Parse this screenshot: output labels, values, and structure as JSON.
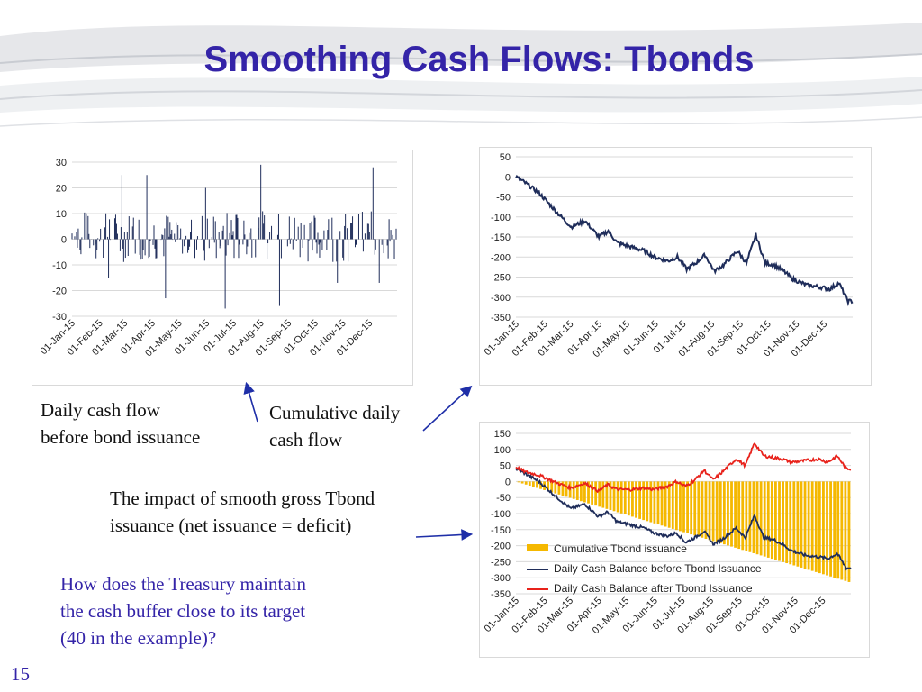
{
  "slide": {
    "title": "Smoothing Cash Flows: Tbonds",
    "page_number": "15",
    "captions": {
      "daily_cash_flow_line1": "Daily cash flow",
      "daily_cash_flow_line2": "before bond issuance",
      "cumulative_line1": "Cumulative daily",
      "cumulative_line2": "cash flow",
      "impact_line1": "The impact of smooth gross Tbond",
      "impact_line2": "issuance (net issuance = deficit)",
      "question_line1": "How does the Treasury maintain",
      "question_line2": "the cash buffer close to its target",
      "question_line3": "(40 in the example)?"
    },
    "colors": {
      "title": "#3424a8",
      "navy_series": "#1f2d5a",
      "red_series": "#e8221b",
      "orange_bars": "#f5b800"
    }
  },
  "chart_data": [
    {
      "type": "bar",
      "ylim": [
        -30,
        30
      ],
      "yticks": [
        30,
        20,
        10,
        0,
        -10,
        -20,
        -30
      ],
      "x_tick_labels": [
        "01-Jan-15",
        "01-Feb-15",
        "01-Mar-15",
        "01-Apr-15",
        "01-May-15",
        "01-Jun-15",
        "01-Jul-15",
        "01-Aug-15",
        "01-Sep-15",
        "01-Oct-15",
        "01-Nov-15",
        "01-Dec-15"
      ],
      "series": [
        {
          "values_description_note": "",
          "spikes": [
            {
              "day": 18,
              "value": 9
            },
            {
              "day": 41,
              "value": -15
            },
            {
              "day": 56,
              "value": 25
            },
            {
              "day": 84,
              "value": 25
            },
            {
              "day": 105,
              "value": -23
            },
            {
              "day": 150,
              "value": 20
            },
            {
              "day": 172,
              "value": -27
            },
            {
              "day": 212,
              "value": 29
            },
            {
              "day": 233,
              "value": -26
            },
            {
              "day": 298,
              "value": -17
            },
            {
              "day": 338,
              "value": 28
            },
            {
              "day": 345,
              "value": -17
            }
          ]
        }
      ]
    },
    {
      "type": "line",
      "ylim": [
        -350,
        50
      ],
      "yticks": [
        50,
        0,
        -50,
        -100,
        -150,
        -200,
        -250,
        -300,
        -350
      ],
      "x_tick_labels": [
        "01-Jan-15",
        "01-Feb-15",
        "01-Mar-15",
        "01-Apr-15",
        "01-May-15",
        "01-Jun-15",
        "01-Jul-15",
        "01-Aug-15",
        "01-Sep-15",
        "01-Oct-15",
        "01-Nov-15",
        "01-Dec-15"
      ],
      "series": [
        {
          "x_days": [
            0,
            10,
            25,
            45,
            60,
            75,
            90,
            100,
            110,
            125,
            140,
            150,
            165,
            175,
            185,
            195,
            205,
            215,
            225,
            240,
            250,
            260,
            270,
            280,
            290,
            300,
            315,
            330,
            340,
            350,
            360
          ],
          "values": [
            0,
            -15,
            -40,
            -90,
            -125,
            -110,
            -150,
            -135,
            -165,
            -175,
            -185,
            -200,
            -210,
            -200,
            -230,
            -215,
            -195,
            -235,
            -220,
            -185,
            -215,
            -145,
            -215,
            -220,
            -235,
            -255,
            -270,
            -275,
            -280,
            -265,
            -310
          ]
        }
      ]
    },
    {
      "type": "line",
      "ylim": [
        -350,
        150
      ],
      "yticks": [
        150,
        100,
        50,
        0,
        -50,
        -100,
        -150,
        -200,
        -250,
        -300,
        -350
      ],
      "x_tick_labels": [
        "01-Jan-15",
        "01-Feb-15",
        "01-Mar-15",
        "01-Apr-15",
        "01-May-15",
        "01-Jun-15",
        "01-Jul-15",
        "01-Aug-15",
        "01-Sep-15",
        "01-Oct-15",
        "01-Nov-15",
        "01-Dec-15"
      ],
      "legend": [
        "Cumulative Tbond issuance",
        "Daily Cash Balance before Tbond Issuance",
        "Daily Cash Balance after Tbond Issuance"
      ],
      "bars_series": {
        "name": "Cumulative Tbond issuance",
        "x_days": [
          0,
          365
        ],
        "values": [
          0,
          -315
        ]
      },
      "series": [
        {
          "name": "Daily Cash Balance before Tbond Issuance",
          "x_days": [
            0,
            10,
            25,
            45,
            60,
            75,
            90,
            100,
            110,
            125,
            140,
            150,
            165,
            175,
            185,
            195,
            205,
            215,
            225,
            240,
            250,
            260,
            270,
            280,
            290,
            300,
            315,
            330,
            340,
            350,
            360
          ],
          "values": [
            40,
            25,
            0,
            -50,
            -85,
            -70,
            -110,
            -95,
            -125,
            -135,
            -145,
            -160,
            -170,
            -160,
            -190,
            -175,
            -155,
            -195,
            -180,
            -145,
            -175,
            -105,
            -175,
            -180,
            -195,
            -215,
            -230,
            -235,
            -240,
            -225,
            -270
          ]
        },
        {
          "name": "Daily Cash Balance after Tbond Issuance",
          "x_days": [
            0,
            10,
            25,
            45,
            60,
            75,
            90,
            100,
            110,
            125,
            140,
            150,
            165,
            175,
            185,
            195,
            205,
            215,
            225,
            240,
            250,
            260,
            270,
            280,
            290,
            300,
            315,
            330,
            340,
            350,
            360
          ],
          "values": [
            45,
            30,
            20,
            -5,
            -20,
            -5,
            -30,
            -10,
            -25,
            -25,
            -20,
            -25,
            -15,
            0,
            -15,
            5,
            35,
            5,
            30,
            70,
            50,
            120,
            80,
            75,
            70,
            60,
            65,
            70,
            60,
            80,
            40
          ]
        }
      ]
    }
  ]
}
